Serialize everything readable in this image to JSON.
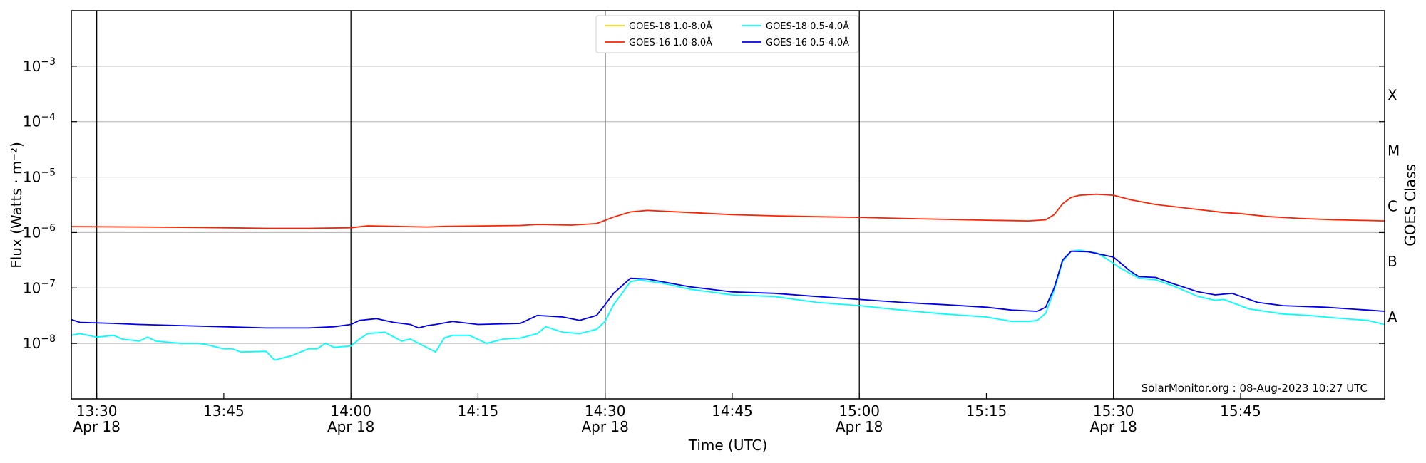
{
  "chart_data": {
    "type": "line",
    "xlabel": "Time (UTC)",
    "ylabel": "Flux (Watts · m⁻²)",
    "y2label": "GOES Class",
    "yscale": "log",
    "ylim": [
      1e-09,
      0.01
    ],
    "xlim": [
      "13:27",
      "16:02"
    ],
    "grid": "horizontal",
    "legend_placement": "top-center",
    "credit": "SolarMonitor.org : 08-Aug-2023 10:27 UTC",
    "x_ticks": [
      {
        "time": "13:30",
        "label": "13:30",
        "date": "Apr 18"
      },
      {
        "time": "13:45",
        "label": "13:45",
        "date": ""
      },
      {
        "time": "14:00",
        "label": "14:00",
        "date": "Apr 18"
      },
      {
        "time": "14:15",
        "label": "14:15",
        "date": ""
      },
      {
        "time": "14:30",
        "label": "14:30",
        "date": "Apr 18"
      },
      {
        "time": "14:45",
        "label": "14:45",
        "date": ""
      },
      {
        "time": "15:00",
        "label": "15:00",
        "date": "Apr 18"
      },
      {
        "time": "15:15",
        "label": "15:15",
        "date": ""
      },
      {
        "time": "15:30",
        "label": "15:30",
        "date": "Apr 18"
      },
      {
        "time": "15:45",
        "label": "15:45",
        "date": ""
      }
    ],
    "vlines": [
      "13:30",
      "14:00",
      "14:30",
      "15:00",
      "15:30"
    ],
    "y_ticks": [
      {
        "base": "10",
        "exp": "−8",
        "value": 1e-08
      },
      {
        "base": "10",
        "exp": "−7",
        "value": 1e-07
      },
      {
        "base": "10",
        "exp": "−6",
        "value": 1e-06
      },
      {
        "base": "10",
        "exp": "−5",
        "value": 1e-05
      },
      {
        "base": "10",
        "exp": "−4",
        "value": 0.0001
      },
      {
        "base": "10",
        "exp": "−3",
        "value": 0.001
      }
    ],
    "goes_classes": [
      {
        "label": "A",
        "value": 3e-08
      },
      {
        "label": "B",
        "value": 3e-07
      },
      {
        "label": "C",
        "value": 3e-06
      },
      {
        "label": "M",
        "value": 3e-05
      },
      {
        "label": "X",
        "value": 0.0003
      }
    ],
    "series": [
      {
        "name": "GOES-18 1.0-8.0Å",
        "color": "#ffd700",
        "in_legend_only": true,
        "points": []
      },
      {
        "name": "GOES-16 1.0-8.0Å",
        "color": "#ff2200",
        "points": [
          [
            "13:27",
            1.28e-06
          ],
          [
            "13:35",
            1.26e-06
          ],
          [
            "13:45",
            1.22e-06
          ],
          [
            "13:50",
            1.19e-06
          ],
          [
            "13:55",
            1.19e-06
          ],
          [
            "14:00",
            1.22e-06
          ],
          [
            "14:02",
            1.32e-06
          ],
          [
            "14:09",
            1.26e-06
          ],
          [
            "14:11",
            1.29e-06
          ],
          [
            "14:20",
            1.34e-06
          ],
          [
            "14:22",
            1.4e-06
          ],
          [
            "14:26",
            1.36e-06
          ],
          [
            "14:29",
            1.45e-06
          ],
          [
            "14:31",
            1.9e-06
          ],
          [
            "14:33",
            2.35e-06
          ],
          [
            "14:35",
            2.5e-06
          ],
          [
            "14:40",
            2.3e-06
          ],
          [
            "14:45",
            2.1e-06
          ],
          [
            "14:50",
            2e-06
          ],
          [
            "14:55",
            1.93e-06
          ],
          [
            "15:00",
            1.88e-06
          ],
          [
            "15:05",
            1.8e-06
          ],
          [
            "15:10",
            1.73e-06
          ],
          [
            "15:15",
            1.67e-06
          ],
          [
            "15:20",
            1.62e-06
          ],
          [
            "15:22",
            1.7e-06
          ],
          [
            "15:23",
            2.1e-06
          ],
          [
            "15:24",
            3.3e-06
          ],
          [
            "15:25",
            4.3e-06
          ],
          [
            "15:26",
            4.7e-06
          ],
          [
            "15:28",
            4.9e-06
          ],
          [
            "15:30",
            4.7e-06
          ],
          [
            "15:32",
            3.9e-06
          ],
          [
            "15:35",
            3.2e-06
          ],
          [
            "15:40",
            2.6e-06
          ],
          [
            "15:43",
            2.3e-06
          ],
          [
            "15:45",
            2.2e-06
          ],
          [
            "15:48",
            1.95e-06
          ],
          [
            "15:52",
            1.8e-06
          ],
          [
            "15:56",
            1.7e-06
          ],
          [
            "16:00",
            1.65e-06
          ],
          [
            "16:02",
            1.62e-06
          ]
        ]
      },
      {
        "name": "GOES-18 0.5-4.0Å",
        "color": "#00ffff",
        "points": [
          [
            "13:27",
            1.4e-08
          ],
          [
            "13:28",
            1.5e-08
          ],
          [
            "13:30",
            1.3e-08
          ],
          [
            "13:32",
            1.4e-08
          ],
          [
            "13:33",
            1.2e-08
          ],
          [
            "13:35",
            1.1e-08
          ],
          [
            "13:36",
            1.3e-08
          ],
          [
            "13:37",
            1.1e-08
          ],
          [
            "13:40",
            1e-08
          ],
          [
            "13:42",
            1e-08
          ],
          [
            "13:43",
            9.5e-09
          ],
          [
            "13:45",
            8e-09
          ],
          [
            "13:46",
            8e-09
          ],
          [
            "13:47",
            7e-09
          ],
          [
            "13:50",
            7.2e-09
          ],
          [
            "13:51",
            5e-09
          ],
          [
            "13:53",
            6e-09
          ],
          [
            "13:55",
            8e-09
          ],
          [
            "13:56",
            8e-09
          ],
          [
            "13:57",
            1e-08
          ],
          [
            "13:58",
            8.5e-09
          ],
          [
            "14:00",
            9e-09
          ],
          [
            "14:01",
            1.2e-08
          ],
          [
            "14:02",
            1.5e-08
          ],
          [
            "14:04",
            1.6e-08
          ],
          [
            "14:06",
            1.1e-08
          ],
          [
            "14:07",
            1.2e-08
          ],
          [
            "14:10",
            7e-09
          ],
          [
            "14:11",
            1.25e-08
          ],
          [
            "14:12",
            1.4e-08
          ],
          [
            "14:14",
            1.4e-08
          ],
          [
            "14:16",
            1e-08
          ],
          [
            "14:18",
            1.2e-08
          ],
          [
            "14:20",
            1.25e-08
          ],
          [
            "14:22",
            1.5e-08
          ],
          [
            "14:23",
            2e-08
          ],
          [
            "14:25",
            1.6e-08
          ],
          [
            "14:27",
            1.5e-08
          ],
          [
            "14:29",
            1.8e-08
          ],
          [
            "14:30",
            2.5e-08
          ],
          [
            "14:31",
            5e-08
          ],
          [
            "14:32",
            8e-08
          ],
          [
            "14:33",
            1.3e-07
          ],
          [
            "14:34",
            1.4e-07
          ],
          [
            "14:37",
            1.2e-07
          ],
          [
            "14:40",
            9.5e-08
          ],
          [
            "14:45",
            7.5e-08
          ],
          [
            "14:50",
            7e-08
          ],
          [
            "14:55",
            5.5e-08
          ],
          [
            "15:00",
            4.8e-08
          ],
          [
            "15:05",
            4e-08
          ],
          [
            "15:10",
            3.4e-08
          ],
          [
            "15:15",
            3e-08
          ],
          [
            "15:18",
            2.5e-08
          ],
          [
            "15:20",
            2.5e-08
          ],
          [
            "15:21",
            2.6e-08
          ],
          [
            "15:22",
            3.5e-08
          ],
          [
            "15:23",
            9e-08
          ],
          [
            "15:24",
            3e-07
          ],
          [
            "15:25",
            4.6e-07
          ],
          [
            "15:26",
            4.8e-07
          ],
          [
            "15:27",
            4.5e-07
          ],
          [
            "15:28",
            4.3e-07
          ],
          [
            "15:29",
            3.5e-07
          ],
          [
            "15:31",
            2.2e-07
          ],
          [
            "15:33",
            1.5e-07
          ],
          [
            "15:35",
            1.4e-07
          ],
          [
            "15:37",
            1.1e-07
          ],
          [
            "15:40",
            7e-08
          ],
          [
            "15:42",
            6e-08
          ],
          [
            "15:43",
            6.2e-08
          ],
          [
            "15:46",
            4.2e-08
          ],
          [
            "15:50",
            3.4e-08
          ],
          [
            "15:53",
            3.2e-08
          ],
          [
            "15:56",
            2.9e-08
          ],
          [
            "16:00",
            2.6e-08
          ],
          [
            "16:02",
            2.2e-08
          ]
        ]
      },
      {
        "name": "GOES-16 0.5-4.0Å",
        "color": "#0000ee",
        "points": [
          [
            "13:27",
            2.7e-08
          ],
          [
            "13:28",
            2.4e-08
          ],
          [
            "13:32",
            2.3e-08
          ],
          [
            "13:35",
            2.2e-08
          ],
          [
            "13:40",
            2.1e-08
          ],
          [
            "13:45",
            2e-08
          ],
          [
            "13:50",
            1.9e-08
          ],
          [
            "13:55",
            1.9e-08
          ],
          [
            "13:58",
            2e-08
          ],
          [
            "14:00",
            2.2e-08
          ],
          [
            "14:01",
            2.6e-08
          ],
          [
            "14:03",
            2.8e-08
          ],
          [
            "14:05",
            2.4e-08
          ],
          [
            "14:07",
            2.2e-08
          ],
          [
            "14:08",
            1.9e-08
          ],
          [
            "14:09",
            2.1e-08
          ],
          [
            "14:10",
            2.2e-08
          ],
          [
            "14:12",
            2.5e-08
          ],
          [
            "14:15",
            2.2e-08
          ],
          [
            "14:20",
            2.3e-08
          ],
          [
            "14:22",
            3.2e-08
          ],
          [
            "14:25",
            3e-08
          ],
          [
            "14:27",
            2.6e-08
          ],
          [
            "14:29",
            3.2e-08
          ],
          [
            "14:30",
            5e-08
          ],
          [
            "14:31",
            8e-08
          ],
          [
            "14:33",
            1.5e-07
          ],
          [
            "14:35",
            1.45e-07
          ],
          [
            "14:40",
            1.05e-07
          ],
          [
            "14:45",
            8.5e-08
          ],
          [
            "14:50",
            8e-08
          ],
          [
            "14:55",
            7e-08
          ],
          [
            "15:00",
            6.2e-08
          ],
          [
            "15:05",
            5.5e-08
          ],
          [
            "15:10",
            5e-08
          ],
          [
            "15:15",
            4.5e-08
          ],
          [
            "15:18",
            4e-08
          ],
          [
            "15:21",
            3.8e-08
          ],
          [
            "15:22",
            4.5e-08
          ],
          [
            "15:23",
            1e-07
          ],
          [
            "15:24",
            3.2e-07
          ],
          [
            "15:25",
            4.6e-07
          ],
          [
            "15:27",
            4.5e-07
          ],
          [
            "15:28",
            4.2e-07
          ],
          [
            "15:30",
            3.6e-07
          ],
          [
            "15:32",
            2e-07
          ],
          [
            "15:33",
            1.6e-07
          ],
          [
            "15:35",
            1.55e-07
          ],
          [
            "15:37",
            1.2e-07
          ],
          [
            "15:40",
            8.5e-08
          ],
          [
            "15:42",
            7.5e-08
          ],
          [
            "15:44",
            8e-08
          ],
          [
            "15:47",
            5.5e-08
          ],
          [
            "15:50",
            4.8e-08
          ],
          [
            "15:55",
            4.5e-08
          ],
          [
            "16:00",
            4e-08
          ],
          [
            "16:02",
            3.8e-08
          ]
        ]
      }
    ]
  }
}
